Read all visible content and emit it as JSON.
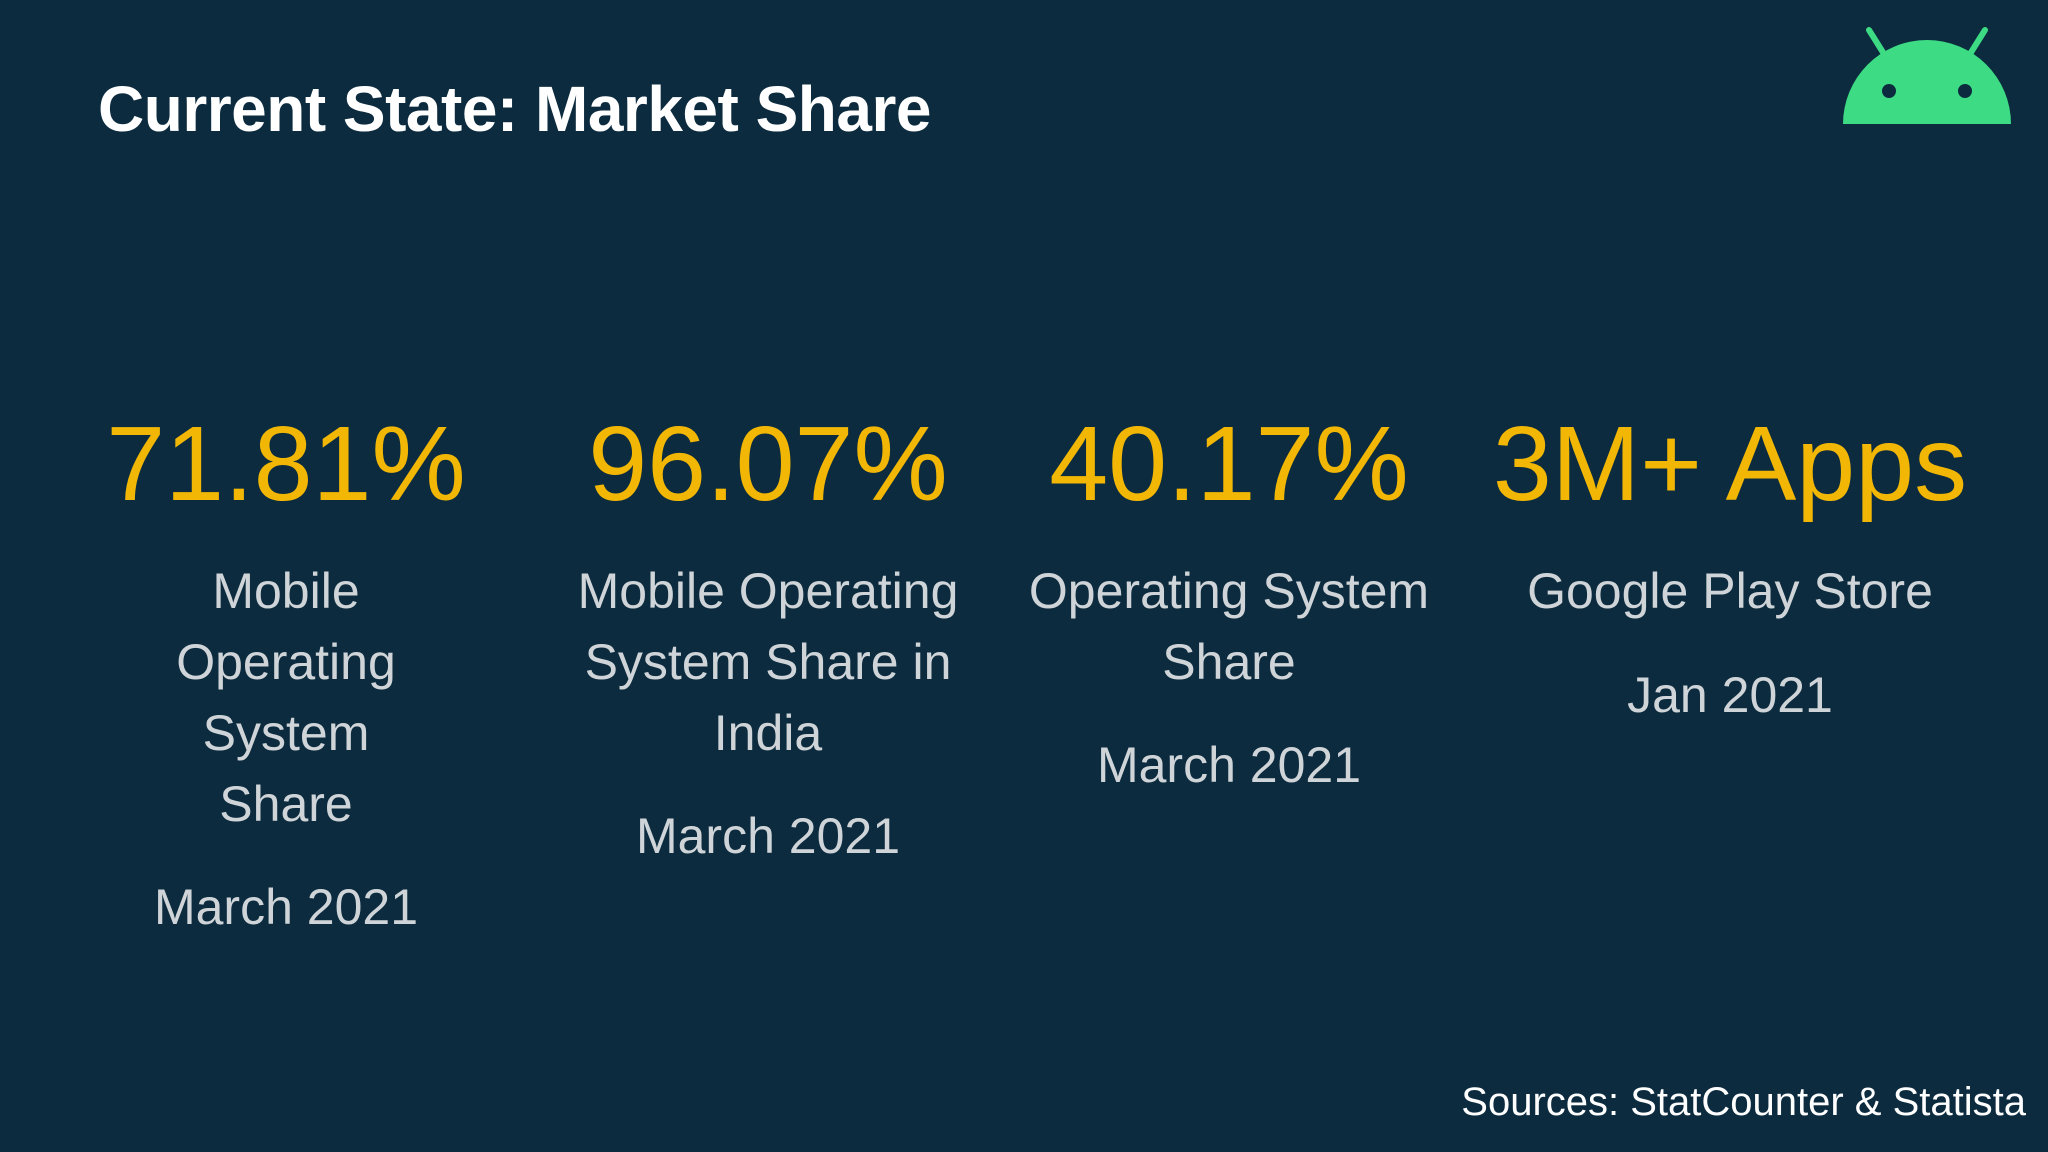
{
  "slide": {
    "title": "Current State: Market Share",
    "logo_icon": "android-robot-icon",
    "accent_color": "#f2b705",
    "logo_color": "#3ddc84",
    "background_color": "#0c2b3e"
  },
  "stats": [
    {
      "value": "71.81%",
      "label": "Mobile Operating System Share",
      "date": "March 2021"
    },
    {
      "value": "96.07%",
      "label": "Mobile Operating System Share in India",
      "date": "March 2021"
    },
    {
      "value": "40.17%",
      "label": "Operating System Share",
      "date": "March 2021"
    },
    {
      "value": "3M+ Apps",
      "label": "Google Play Store",
      "date": "Jan 2021"
    }
  ],
  "footer": {
    "sources": "Sources: StatCounter & Statista"
  }
}
